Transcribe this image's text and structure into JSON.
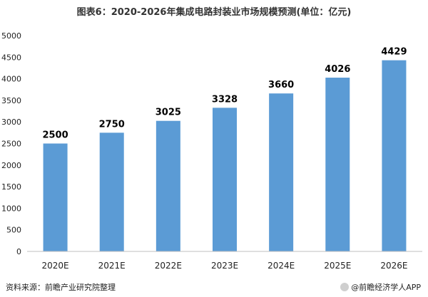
{
  "chart_data": {
    "type": "bar",
    "title": "图表6：2020-2026年集成电路封装业市场规模预测(单位：亿元)",
    "categories": [
      "2020E",
      "2021E",
      "2022E",
      "2023E",
      "2024E",
      "2025E",
      "2026E"
    ],
    "values": [
      2500,
      2750,
      3025,
      3328,
      3660,
      4026,
      4429
    ],
    "ylim": [
      0,
      5000
    ],
    "yticks": [
      0,
      500,
      1000,
      1500,
      2000,
      2500,
      3000,
      3500,
      4000,
      4500,
      5000
    ],
    "grid": false,
    "legend": "none",
    "colors": {
      "bar": "#5b9bd5",
      "axis": "#bfbfbf",
      "text": "#222222"
    }
  },
  "footer": {
    "source": "资料来源：前瞻产业研究院整理",
    "credit": "@前瞻经济学人APP",
    "credit_icon": "qianzhan-logo-icon"
  }
}
